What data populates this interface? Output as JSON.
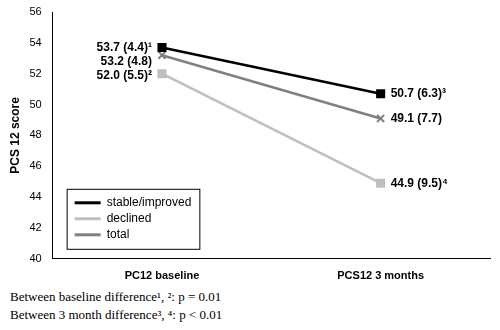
{
  "chart_data": {
    "type": "line",
    "y_label": "PCS 12 score",
    "categories": [
      "PC12 baseline",
      "PCS12 3 months"
    ],
    "series": [
      {
        "name": "stable/improved",
        "color": "#000000",
        "marker": "square",
        "values": [
          53.7,
          50.7
        ],
        "value_labels": [
          "53.7 (4.4)¹",
          "50.7 (6.3)³"
        ]
      },
      {
        "name": "declined",
        "color": "#bfbfbf",
        "marker": "square",
        "values": [
          52.0,
          44.9
        ],
        "value_labels": [
          "52.0 (5.5)²",
          "44.9 (9.5)⁴"
        ]
      },
      {
        "name": "total",
        "color": "#808080",
        "marker": "cross",
        "values": [
          53.2,
          49.1
        ],
        "value_labels": [
          "53.2 (4.8)",
          "49.1 (7.7)"
        ]
      }
    ],
    "ylim": [
      40,
      56
    ],
    "yticks": [
      40,
      42,
      44,
      46,
      48,
      50,
      52,
      54,
      56
    ],
    "grid": false,
    "legend": "lower left",
    "data_labels": true,
    "annotations": [
      "Between baseline difference¹, ²: p = 0.01",
      "Between 3 month difference³, ⁴: p < 0.01"
    ]
  }
}
